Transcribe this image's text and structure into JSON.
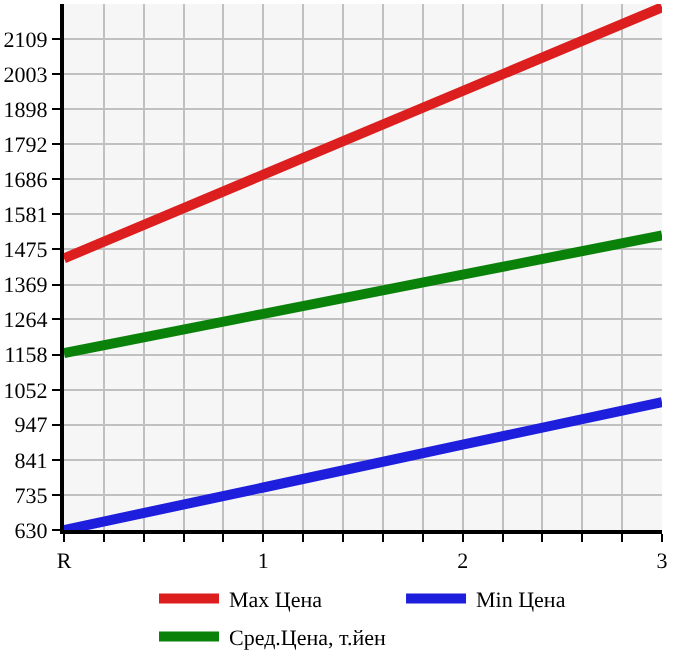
{
  "chart_data": {
    "type": "line",
    "categories": [
      "R",
      "1",
      "2",
      "3"
    ],
    "series": [
      {
        "name": "Max Цена",
        "color": "#dd1e1e",
        "values": [
          1448,
          1700,
          1952,
          2204
        ]
      },
      {
        "name": "Min Цена",
        "color": "#1e1edd",
        "values": [
          630,
          758,
          887,
          1015
        ]
      },
      {
        "name": "Сред.Цена, т.йен",
        "color": "#0a820a",
        "values": [
          1163,
          1281,
          1399,
          1517
        ]
      }
    ],
    "ylim": [
      630,
      2214
    ],
    "yticks": [
      630,
      735,
      841,
      947,
      1052,
      1158,
      1264,
      1369,
      1475,
      1581,
      1686,
      1792,
      1898,
      2003,
      2109
    ],
    "grid": true,
    "legend": "bottom",
    "marker": "none",
    "line_style": "solid"
  }
}
